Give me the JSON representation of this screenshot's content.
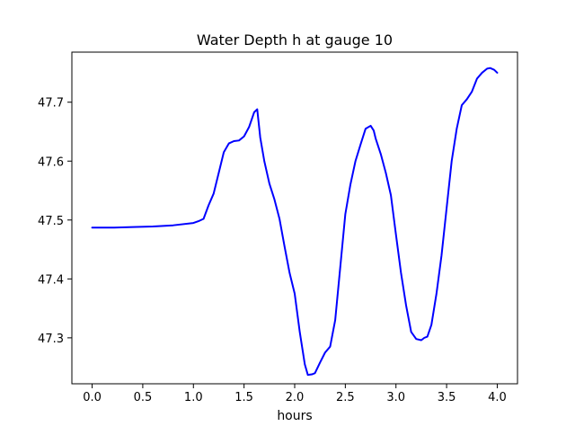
{
  "chart_data": {
    "type": "line",
    "title": "Water Depth h at gauge 10",
    "xlabel": "hours",
    "ylabel": "",
    "xlim": [
      -0.2,
      4.2
    ],
    "ylim": [
      47.222,
      47.785
    ],
    "grid": false,
    "xticks": [
      0.0,
      0.5,
      1.0,
      1.5,
      2.0,
      2.5,
      3.0,
      3.5,
      4.0
    ],
    "xtick_labels": [
      "0.0",
      "0.5",
      "1.0",
      "1.5",
      "2.0",
      "2.5",
      "3.0",
      "3.5",
      "4.0"
    ],
    "yticks": [
      47.3,
      47.4,
      47.5,
      47.6,
      47.7
    ],
    "ytick_labels": [
      "47.3",
      "47.4",
      "47.5",
      "47.6",
      "47.7"
    ],
    "series": [
      {
        "color": "#0000ff",
        "x": [
          0.0,
          0.2,
          0.4,
          0.6,
          0.8,
          1.0,
          1.05,
          1.1,
          1.15,
          1.2,
          1.25,
          1.3,
          1.35,
          1.4,
          1.45,
          1.5,
          1.55,
          1.6,
          1.63,
          1.66,
          1.7,
          1.75,
          1.8,
          1.85,
          1.9,
          1.95,
          2.0,
          2.05,
          2.1,
          2.13,
          2.17,
          2.2,
          2.25,
          2.3,
          2.35,
          2.4,
          2.45,
          2.5,
          2.55,
          2.6,
          2.65,
          2.7,
          2.75,
          2.78,
          2.8,
          2.85,
          2.9,
          2.95,
          3.0,
          3.05,
          3.1,
          3.15,
          3.2,
          3.25,
          3.28,
          3.31,
          3.35,
          3.4,
          3.45,
          3.5,
          3.55,
          3.6,
          3.65,
          3.7,
          3.75,
          3.8,
          3.85,
          3.9,
          3.93,
          3.97,
          4.0
        ],
        "y": [
          47.487,
          47.487,
          47.488,
          47.489,
          47.491,
          47.495,
          47.498,
          47.502,
          47.525,
          47.545,
          47.58,
          47.615,
          47.63,
          47.634,
          47.635,
          47.642,
          47.658,
          47.683,
          47.688,
          47.64,
          47.6,
          47.562,
          47.535,
          47.502,
          47.455,
          47.41,
          47.375,
          47.31,
          47.255,
          47.237,
          47.238,
          47.24,
          47.258,
          47.275,
          47.285,
          47.33,
          47.42,
          47.51,
          47.56,
          47.6,
          47.628,
          47.655,
          47.66,
          47.652,
          47.638,
          47.612,
          47.58,
          47.542,
          47.475,
          47.41,
          47.355,
          47.31,
          47.298,
          47.296,
          47.3,
          47.302,
          47.322,
          47.375,
          47.44,
          47.52,
          47.6,
          47.655,
          47.695,
          47.705,
          47.718,
          47.74,
          47.75,
          47.757,
          47.758,
          47.755,
          47.75
        ]
      }
    ]
  }
}
